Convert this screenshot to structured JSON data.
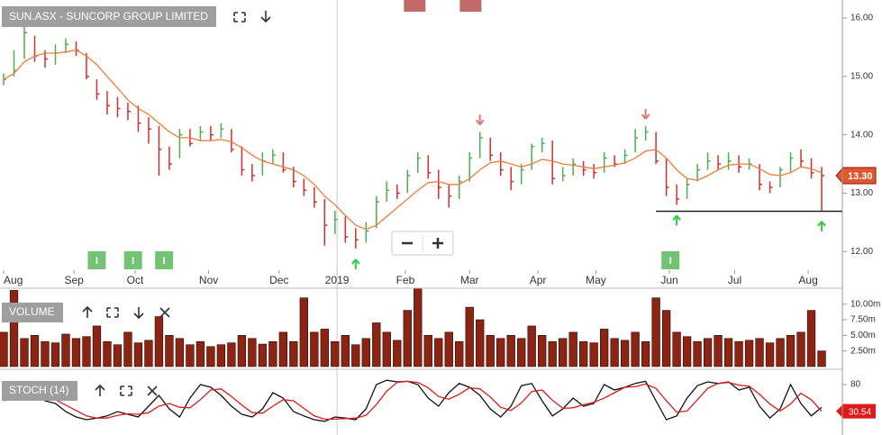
{
  "chart_data": [
    {
      "type": "ohlc",
      "title": "SUN.ASX - SUNCORP GROUP LIMITED",
      "xlim": [
        -0.35,
        81
      ],
      "xticks": [
        {
          "value": 0,
          "label": "Aug"
        },
        {
          "value": 6.8,
          "label": "Sep"
        },
        {
          "value": 12.7,
          "label": "Oct"
        },
        {
          "value": 19.8,
          "label": "Nov"
        },
        {
          "value": 26.6,
          "label": "Dec"
        },
        {
          "value": 32.2,
          "label": "2019"
        },
        {
          "value": 38.8,
          "label": "Feb"
        },
        {
          "value": 45,
          "label": "Mar"
        },
        {
          "value": 51.6,
          "label": "Apr"
        },
        {
          "value": 57.2,
          "label": "May"
        },
        {
          "value": 64.3,
          "label": "Jun"
        },
        {
          "value": 70.6,
          "label": "Jul"
        },
        {
          "value": 77.7,
          "label": "Aug"
        }
      ],
      "divider_tick": 5,
      "ylim": [
        11.68,
        16.31
      ],
      "yticks": [
        {
          "value": 12,
          "label": "12.00"
        },
        {
          "value": 13,
          "label": "13.00"
        },
        {
          "value": 14,
          "label": "14.00"
        },
        {
          "value": 15,
          "label": "15.00"
        },
        {
          "value": 16,
          "label": "16.00"
        }
      ],
      "up_color": "#4caf50",
      "down_color": "#d32f2f",
      "high": [
        15.05,
        15.45,
        15.85,
        15.7,
        15.45,
        15.55,
        15.65,
        15.6,
        15.4,
        14.95,
        14.75,
        14.65,
        14.55,
        14.5,
        14.3,
        14.15,
        13.8,
        14.1,
        14.1,
        14.15,
        14.15,
        14.2,
        14.1,
        13.8,
        13.5,
        13.7,
        13.75,
        13.7,
        13.45,
        13.25,
        13.1,
        12.9,
        12.7,
        12.6,
        12.4,
        12.5,
        12.95,
        13.2,
        13.15,
        13.4,
        13.7,
        13.65,
        13.4,
        13.15,
        13.3,
        13.7,
        14.05,
        13.95,
        13.7,
        13.45,
        13.5,
        13.85,
        13.95,
        13.9,
        13.45,
        13.6,
        13.55,
        13.5,
        13.7,
        13.65,
        13.75,
        14.1,
        14.15,
        14.05,
        13.6,
        13.15,
        13.25,
        13.5,
        13.7,
        13.65,
        13.7,
        13.65,
        13.6,
        13.5,
        13.2,
        13.45,
        13.7,
        13.75,
        13.6,
        13.45
      ],
      "low": [
        14.85,
        15.0,
        15.3,
        15.25,
        15.15,
        15.2,
        15.4,
        15.35,
        14.95,
        14.6,
        14.35,
        14.3,
        14.25,
        14.05,
        13.85,
        13.3,
        13.4,
        13.6,
        13.8,
        13.9,
        13.9,
        13.95,
        13.7,
        13.3,
        13.2,
        13.3,
        13.5,
        13.35,
        13.1,
        12.95,
        12.75,
        12.1,
        12.3,
        12.15,
        12.05,
        12.15,
        12.4,
        12.85,
        12.9,
        13.0,
        13.35,
        13.25,
        12.9,
        12.75,
        12.9,
        13.2,
        13.6,
        13.55,
        13.3,
        13.05,
        13.15,
        13.4,
        13.7,
        13.15,
        13.2,
        13.3,
        13.3,
        13.25,
        13.35,
        13.45,
        13.5,
        13.7,
        13.9,
        13.5,
        12.95,
        12.8,
        12.9,
        13.2,
        13.4,
        13.4,
        13.4,
        13.35,
        13.4,
        13.05,
        13.0,
        13.1,
        13.35,
        13.45,
        13.25,
        12.7
      ],
      "close": [
        14.95,
        15.1,
        15.75,
        15.35,
        15.3,
        15.4,
        15.55,
        15.45,
        15.0,
        14.7,
        14.5,
        14.45,
        14.4,
        14.2,
        14.1,
        13.75,
        13.5,
        14.0,
        13.85,
        14.05,
        14.0,
        14.1,
        13.75,
        13.4,
        13.3,
        13.55,
        13.65,
        13.4,
        13.2,
        13.05,
        12.85,
        12.45,
        12.55,
        12.25,
        12.2,
        12.35,
        12.85,
        13.05,
        13.0,
        13.3,
        13.6,
        13.35,
        13.1,
        12.95,
        13.2,
        13.6,
        13.95,
        13.65,
        13.4,
        13.2,
        13.4,
        13.8,
        13.85,
        13.25,
        13.3,
        13.5,
        13.4,
        13.35,
        13.6,
        13.5,
        13.65,
        13.95,
        14.05,
        13.55,
        13.1,
        12.9,
        13.15,
        13.4,
        13.55,
        13.5,
        13.55,
        13.45,
        13.5,
        13.15,
        13.1,
        13.4,
        13.6,
        13.55,
        13.35,
        13.3
      ],
      "ma": {
        "color": "#f07d3c",
        "values": [
          14.95,
          15.05,
          15.25,
          15.35,
          15.4,
          15.4,
          15.42,
          15.45,
          15.35,
          15.2,
          15.0,
          14.8,
          14.6,
          14.45,
          14.35,
          14.2,
          14.05,
          13.95,
          13.95,
          13.9,
          13.9,
          13.92,
          13.88,
          13.78,
          13.65,
          13.55,
          13.5,
          13.45,
          13.4,
          13.3,
          13.15,
          12.95,
          12.8,
          12.62,
          12.45,
          12.38,
          12.45,
          12.6,
          12.75,
          12.9,
          13.05,
          13.18,
          13.2,
          13.15,
          13.15,
          13.25,
          13.4,
          13.52,
          13.55,
          13.5,
          13.45,
          13.5,
          13.58,
          13.55,
          13.5,
          13.48,
          13.45,
          13.42,
          13.45,
          13.48,
          13.52,
          13.6,
          13.72,
          13.75,
          13.6,
          13.4,
          13.25,
          13.22,
          13.3,
          13.4,
          13.48,
          13.5,
          13.5,
          13.42,
          13.32,
          13.3,
          13.35,
          13.45,
          13.42,
          13.35
        ]
      },
      "last_price": {
        "value": 13.3,
        "label": "13.30"
      },
      "support": {
        "value": 12.69,
        "from": 63
      },
      "signals": [
        {
          "x": 34,
          "direction": "up"
        },
        {
          "x": 46,
          "direction": "down"
        },
        {
          "x": 62,
          "direction": "down"
        },
        {
          "x": 65,
          "direction": "up"
        },
        {
          "x": 79,
          "direction": "up"
        }
      ],
      "events": [
        {
          "x": 9,
          "label": "I"
        },
        {
          "x": 12.5,
          "label": "I"
        },
        {
          "x": 15.5,
          "label": "I"
        },
        {
          "x": 64.4,
          "label": "I"
        }
      ],
      "alerts": [
        {
          "x": 39.7
        },
        {
          "x": 45.1
        }
      ]
    },
    {
      "type": "bar",
      "title": "VOLUME",
      "color": "#8b2412",
      "ylim": [
        0,
        12.55
      ],
      "yticks": [
        {
          "value": 2.5,
          "label": "2.50m"
        },
        {
          "value": 5,
          "label": "5.00m"
        },
        {
          "value": 7.5,
          "label": "7.50m"
        },
        {
          "value": 10,
          "label": "10.00m"
        }
      ],
      "values": [
        5.5,
        12.2,
        4.5,
        5.0,
        4.0,
        3.8,
        5.2,
        4.5,
        4.8,
        6.5,
        4.0,
        3.5,
        5.5,
        3.8,
        4.2,
        8.0,
        5.0,
        4.5,
        3.5,
        4.0,
        3.2,
        3.5,
        3.8,
        5.0,
        4.5,
        3.6,
        4.0,
        5.5,
        4.0,
        11.0,
        5.5,
        6.0,
        4.0,
        5.0,
        3.5,
        4.5,
        7.0,
        5.5,
        4.2,
        9.0,
        12.5,
        5.0,
        4.5,
        5.5,
        4.0,
        9.5,
        7.5,
        5.0,
        4.5,
        5.0,
        4.5,
        6.5,
        5.0,
        4.0,
        4.5,
        5.5,
        4.0,
        3.8,
        6.0,
        4.5,
        4.2,
        5.5,
        4.0,
        11.0,
        9.0,
        5.5,
        4.8,
        4.0,
        4.5,
        5.0,
        4.5,
        4.0,
        4.2,
        4.5,
        3.8,
        4.5,
        5.0,
        5.5,
        9.0,
        2.5
      ]
    },
    {
      "type": "line",
      "title": "STOCH (14)",
      "ylim": [
        0,
        100
      ],
      "yticks": [
        80
      ],
      "series": [
        {
          "color": "#111111",
          "values": [
            55,
            70,
            85,
            60,
            50,
            45,
            30,
            20,
            15,
            18,
            22,
            30,
            25,
            20,
            40,
            60,
            35,
            20,
            55,
            80,
            75,
            60,
            40,
            25,
            20,
            35,
            65,
            55,
            30,
            22,
            15,
            12,
            20,
            18,
            15,
            35,
            80,
            88,
            85,
            86,
            80,
            55,
            40,
            65,
            82,
            75,
            60,
            35,
            20,
            40,
            78,
            82,
            50,
            22,
            35,
            55,
            40,
            45,
            80,
            70,
            75,
            82,
            86,
            50,
            15,
            22,
            55,
            78,
            85,
            82,
            85,
            70,
            75,
            40,
            18,
            35,
            80,
            45,
            22,
            38
          ]
        },
        {
          "color": "#e01a1a",
          "values": [
            50,
            60,
            72,
            70,
            62,
            52,
            42,
            32,
            22,
            18,
            18,
            23,
            26,
            25,
            28,
            40,
            45,
            38,
            37,
            52,
            70,
            72,
            58,
            42,
            28,
            27,
            40,
            52,
            50,
            36,
            22,
            16,
            16,
            17,
            18,
            23,
            43,
            68,
            84,
            86,
            84,
            74,
            58,
            53,
            62,
            74,
            72,
            57,
            38,
            32,
            46,
            67,
            70,
            51,
            36,
            37,
            43,
            47,
            55,
            65,
            75,
            76,
            81,
            73,
            50,
            29,
            31,
            52,
            73,
            82,
            84,
            79,
            77,
            62,
            44,
            31,
            44,
            64,
            52,
            30.54
          ]
        }
      ]
    }
  ]
}
